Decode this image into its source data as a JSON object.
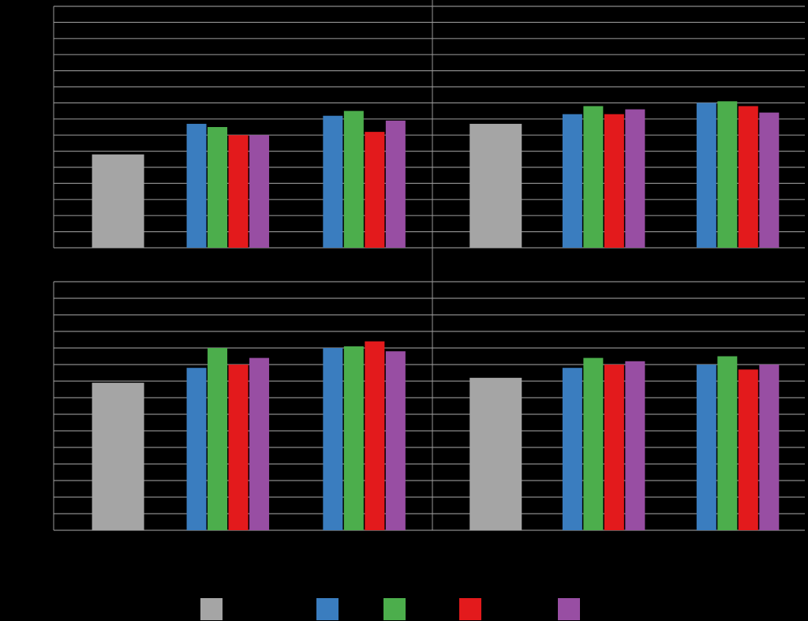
{
  "chart_data": [
    {
      "type": "bar",
      "categories": [
        null,
        null,
        null
      ],
      "ylim": [
        0,
        15
      ],
      "yticks": [
        0,
        1,
        2,
        3,
        4,
        5,
        6,
        7,
        8,
        9,
        10,
        11,
        12,
        13,
        14,
        15
      ],
      "grid": true,
      "series": [
        {
          "color": "#a5a5a5",
          "values": [
            5.8,
            null,
            null
          ]
        },
        {
          "color": "#3a7dbf",
          "values": [
            null,
            7.7,
            8.2
          ]
        },
        {
          "color": "#4cae4c",
          "values": [
            null,
            7.5,
            8.5
          ]
        },
        {
          "color": "#e31a1c",
          "values": [
            null,
            7.0,
            7.2
          ]
        },
        {
          "color": "#984ea3",
          "values": [
            null,
            7.0,
            7.9
          ]
        }
      ]
    },
    {
      "type": "bar",
      "categories": [
        null,
        null,
        null
      ],
      "ylim": [
        0,
        15
      ],
      "yticks": [
        0,
        1,
        2,
        3,
        4,
        5,
        6,
        7,
        8,
        9,
        10,
        11,
        12,
        13,
        14,
        15
      ],
      "grid": true,
      "series": [
        {
          "color": "#a5a5a5",
          "values": [
            7.7,
            null,
            null
          ]
        },
        {
          "color": "#3a7dbf",
          "values": [
            null,
            8.3,
            9.0
          ]
        },
        {
          "color": "#4cae4c",
          "values": [
            null,
            8.8,
            9.1
          ]
        },
        {
          "color": "#e31a1c",
          "values": [
            null,
            8.3,
            8.8
          ]
        },
        {
          "color": "#984ea3",
          "values": [
            null,
            8.6,
            8.4
          ]
        }
      ]
    },
    {
      "type": "bar",
      "categories": [
        null,
        null,
        null
      ],
      "ylim": [
        0,
        15
      ],
      "yticks": [
        0,
        1,
        2,
        3,
        4,
        5,
        6,
        7,
        8,
        9,
        10,
        11,
        12,
        13,
        14,
        15
      ],
      "grid": true,
      "series": [
        {
          "color": "#a5a5a5",
          "values": [
            8.9,
            null,
            null
          ]
        },
        {
          "color": "#3a7dbf",
          "values": [
            null,
            9.8,
            11.0
          ]
        },
        {
          "color": "#4cae4c",
          "values": [
            null,
            11.0,
            11.1
          ]
        },
        {
          "color": "#e31a1c",
          "values": [
            null,
            10.0,
            11.4
          ]
        },
        {
          "color": "#984ea3",
          "values": [
            null,
            10.4,
            10.8
          ]
        }
      ]
    },
    {
      "type": "bar",
      "categories": [
        null,
        null,
        null
      ],
      "ylim": [
        0,
        15
      ],
      "yticks": [
        0,
        1,
        2,
        3,
        4,
        5,
        6,
        7,
        8,
        9,
        10,
        11,
        12,
        13,
        14,
        15
      ],
      "grid": true,
      "series": [
        {
          "color": "#a5a5a5",
          "values": [
            9.2,
            null,
            null
          ]
        },
        {
          "color": "#3a7dbf",
          "values": [
            null,
            9.8,
            10.0
          ]
        },
        {
          "color": "#4cae4c",
          "values": [
            null,
            10.4,
            10.5
          ]
        },
        {
          "color": "#e31a1c",
          "values": [
            null,
            10.0,
            9.7
          ]
        },
        {
          "color": "#984ea3",
          "values": [
            null,
            10.2,
            10.0
          ]
        }
      ]
    }
  ]
}
